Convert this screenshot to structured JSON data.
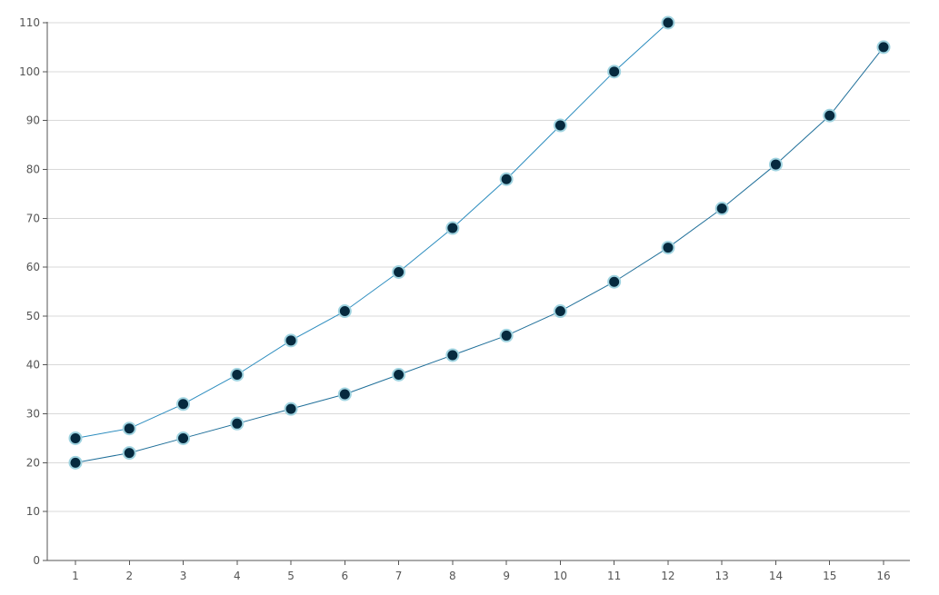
{
  "chart_data": {
    "type": "line",
    "title": "",
    "xlabel": "",
    "ylabel": "",
    "x": [
      1,
      2,
      3,
      4,
      5,
      6,
      7,
      8,
      9,
      10,
      11,
      12,
      13,
      14,
      15,
      16
    ],
    "xlim": [
      1,
      16
    ],
    "ylim": [
      0,
      110
    ],
    "yticks": [
      0,
      10,
      20,
      30,
      40,
      50,
      60,
      70,
      80,
      90,
      100,
      110
    ],
    "xticks": [
      1,
      2,
      3,
      4,
      5,
      6,
      7,
      8,
      9,
      10,
      11,
      12,
      13,
      14,
      15,
      16
    ],
    "grid": "horizontal",
    "legend": "none",
    "series": [
      {
        "x": [
          1,
          2,
          3,
          4,
          5,
          6,
          7,
          8,
          9,
          10,
          11,
          12
        ],
        "values": [
          25,
          27,
          32,
          38,
          45,
          51,
          59,
          68,
          78,
          89,
          100,
          110
        ],
        "line_color": "#2b8cbe",
        "marker_fill": "#062a3f",
        "marker_edge": "#9fd3e0"
      },
      {
        "x": [
          1,
          2,
          3,
          4,
          5,
          6,
          7,
          8,
          9,
          10,
          11,
          12,
          13,
          14,
          15,
          16
        ],
        "values": [
          20,
          22,
          25,
          28,
          31,
          34,
          38,
          42,
          46,
          51,
          57,
          64,
          72,
          81,
          91,
          105
        ],
        "line_color": "#1f6f99",
        "marker_fill": "#062a3f",
        "marker_edge": "#9fd3e0"
      }
    ]
  }
}
